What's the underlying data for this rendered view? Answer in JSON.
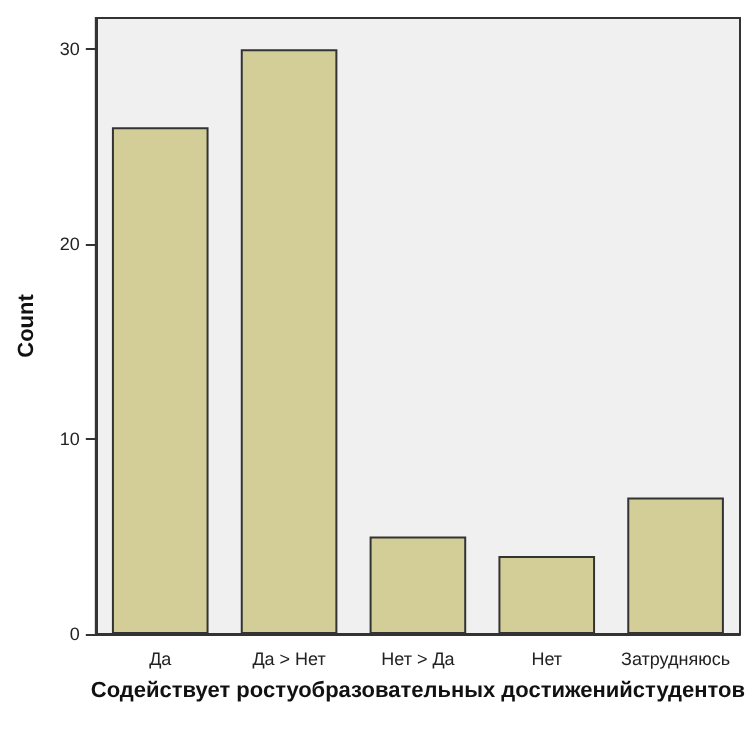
{
  "chart_data": {
    "type": "bar",
    "xlabel": "Содействует ростуобразовательных достиженийстудентов",
    "ylabel": "Count",
    "categories": [
      "Да",
      "Да > Нет",
      "Нет > Да",
      "Нет",
      "Затрудняюсь"
    ],
    "values": [
      26,
      30,
      5,
      4,
      7
    ],
    "color": "#d3ce97",
    "ylim": [
      0,
      31.6
    ],
    "yticks": [
      0,
      10,
      20,
      30
    ],
    "grid": false
  }
}
